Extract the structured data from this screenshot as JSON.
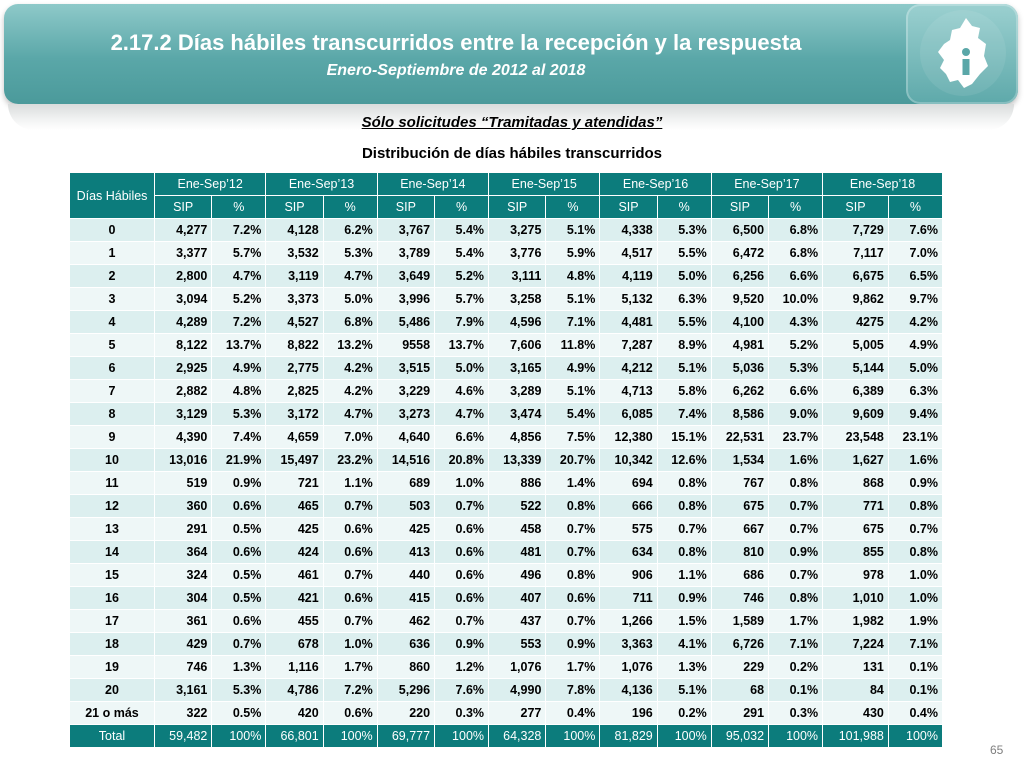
{
  "header": {
    "title": "2.17.2 Días hábiles transcurridos entre la recepción y la respuesta",
    "subtitle": "Enero-Septiembre de 2012 al 2018",
    "logo_icon": "cdmx-map-info-icon"
  },
  "note": "Sólo solicitudes “Tramitadas y atendidas”",
  "table_title": "Distribución de días hábiles transcurridos",
  "table": {
    "corner": "Días Hábiles",
    "periods": [
      "Ene-Sep’12",
      "Ene-Sep’13",
      "Ene-Sep’14",
      "Ene-Sep’15",
      "Ene-Sep’16",
      "Ene-Sep’17",
      "Ene-Sep’18"
    ],
    "sub_sip": "SIP",
    "sub_pct": "%",
    "rows": [
      [
        "0",
        "4,277",
        "7.2%",
        "4,128",
        "6.2%",
        "3,767",
        "5.4%",
        "3,275",
        "5.1%",
        "4,338",
        "5.3%",
        "6,500",
        "6.8%",
        "7,729",
        "7.6%"
      ],
      [
        "1",
        "3,377",
        "5.7%",
        "3,532",
        "5.3%",
        "3,789",
        "5.4%",
        "3,776",
        "5.9%",
        "4,517",
        "5.5%",
        "6,472",
        "6.8%",
        "7,117",
        "7.0%"
      ],
      [
        "2",
        "2,800",
        "4.7%",
        "3,119",
        "4.7%",
        "3,649",
        "5.2%",
        "3,111",
        "4.8%",
        "4,119",
        "5.0%",
        "6,256",
        "6.6%",
        "6,675",
        "6.5%"
      ],
      [
        "3",
        "3,094",
        "5.2%",
        "3,373",
        "5.0%",
        "3,996",
        "5.7%",
        "3,258",
        "5.1%",
        "5,132",
        "6.3%",
        "9,520",
        "10.0%",
        "9,862",
        "9.7%"
      ],
      [
        "4",
        "4,289",
        "7.2%",
        "4,527",
        "6.8%",
        "5,486",
        "7.9%",
        "4,596",
        "7.1%",
        "4,481",
        "5.5%",
        "4,100",
        "4.3%",
        "4275",
        "4.2%"
      ],
      [
        "5",
        "8,122",
        "13.7%",
        "8,822",
        "13.2%",
        "9558",
        "13.7%",
        "7,606",
        "11.8%",
        "7,287",
        "8.9%",
        "4,981",
        "5.2%",
        "5,005",
        "4.9%"
      ],
      [
        "6",
        "2,925",
        "4.9%",
        "2,775",
        "4.2%",
        "3,515",
        "5.0%",
        "3,165",
        "4.9%",
        "4,212",
        "5.1%",
        "5,036",
        "5.3%",
        "5,144",
        "5.0%"
      ],
      [
        "7",
        "2,882",
        "4.8%",
        "2,825",
        "4.2%",
        "3,229",
        "4.6%",
        "3,289",
        "5.1%",
        "4,713",
        "5.8%",
        "6,262",
        "6.6%",
        "6,389",
        "6.3%"
      ],
      [
        "8",
        "3,129",
        "5.3%",
        "3,172",
        "4.7%",
        "3,273",
        "4.7%",
        "3,474",
        "5.4%",
        "6,085",
        "7.4%",
        "8,586",
        "9.0%",
        "9,609",
        "9.4%"
      ],
      [
        "9",
        "4,390",
        "7.4%",
        "4,659",
        "7.0%",
        "4,640",
        "6.6%",
        "4,856",
        "7.5%",
        "12,380",
        "15.1%",
        "22,531",
        "23.7%",
        "23,548",
        "23.1%"
      ],
      [
        "10",
        "13,016",
        "21.9%",
        "15,497",
        "23.2%",
        "14,516",
        "20.8%",
        "13,339",
        "20.7%",
        "10,342",
        "12.6%",
        "1,534",
        "1.6%",
        "1,627",
        "1.6%"
      ],
      [
        "11",
        "519",
        "0.9%",
        "721",
        "1.1%",
        "689",
        "1.0%",
        "886",
        "1.4%",
        "694",
        "0.8%",
        "767",
        "0.8%",
        "868",
        "0.9%"
      ],
      [
        "12",
        "360",
        "0.6%",
        "465",
        "0.7%",
        "503",
        "0.7%",
        "522",
        "0.8%",
        "666",
        "0.8%",
        "675",
        "0.7%",
        "771",
        "0.8%"
      ],
      [
        "13",
        "291",
        "0.5%",
        "425",
        "0.6%",
        "425",
        "0.6%",
        "458",
        "0.7%",
        "575",
        "0.7%",
        "667",
        "0.7%",
        "675",
        "0.7%"
      ],
      [
        "14",
        "364",
        "0.6%",
        "424",
        "0.6%",
        "413",
        "0.6%",
        "481",
        "0.7%",
        "634",
        "0.8%",
        "810",
        "0.9%",
        "855",
        "0.8%"
      ],
      [
        "15",
        "324",
        "0.5%",
        "461",
        "0.7%",
        "440",
        "0.6%",
        "496",
        "0.8%",
        "906",
        "1.1%",
        "686",
        "0.7%",
        "978",
        "1.0%"
      ],
      [
        "16",
        "304",
        "0.5%",
        "421",
        "0.6%",
        "415",
        "0.6%",
        "407",
        "0.6%",
        "711",
        "0.9%",
        "746",
        "0.8%",
        "1,010",
        "1.0%"
      ],
      [
        "17",
        "361",
        "0.6%",
        "455",
        "0.7%",
        "462",
        "0.7%",
        "437",
        "0.7%",
        "1,266",
        "1.5%",
        "1,589",
        "1.7%",
        "1,982",
        "1.9%"
      ],
      [
        "18",
        "429",
        "0.7%",
        "678",
        "1.0%",
        "636",
        "0.9%",
        "553",
        "0.9%",
        "3,363",
        "4.1%",
        "6,726",
        "7.1%",
        "7,224",
        "7.1%"
      ],
      [
        "19",
        "746",
        "1.3%",
        "1,116",
        "1.7%",
        "860",
        "1.2%",
        "1,076",
        "1.7%",
        "1,076",
        "1.3%",
        "229",
        "0.2%",
        "131",
        "0.1%"
      ],
      [
        "20",
        "3,161",
        "5.3%",
        "4,786",
        "7.2%",
        "5,296",
        "7.6%",
        "4,990",
        "7.8%",
        "4,136",
        "5.1%",
        "68",
        "0.1%",
        "84",
        "0.1%"
      ],
      [
        "21 o más",
        "322",
        "0.5%",
        "420",
        "0.6%",
        "220",
        "0.3%",
        "277",
        "0.4%",
        "196",
        "0.2%",
        "291",
        "0.3%",
        "430",
        "0.4%"
      ]
    ],
    "total": [
      "Total",
      "59,482",
      "100%",
      "66,801",
      "100%",
      "69,777",
      "100%",
      "64,328",
      "100%",
      "81,829",
      "100%",
      "95,032",
      "100%",
      "101,988",
      "100%"
    ]
  },
  "page_number": "65",
  "colors": {
    "header_teal": "#0c7c7c",
    "banner": "#5aa7a8",
    "row_light": "#dcefef",
    "row_lighter": "#eef7f7"
  }
}
